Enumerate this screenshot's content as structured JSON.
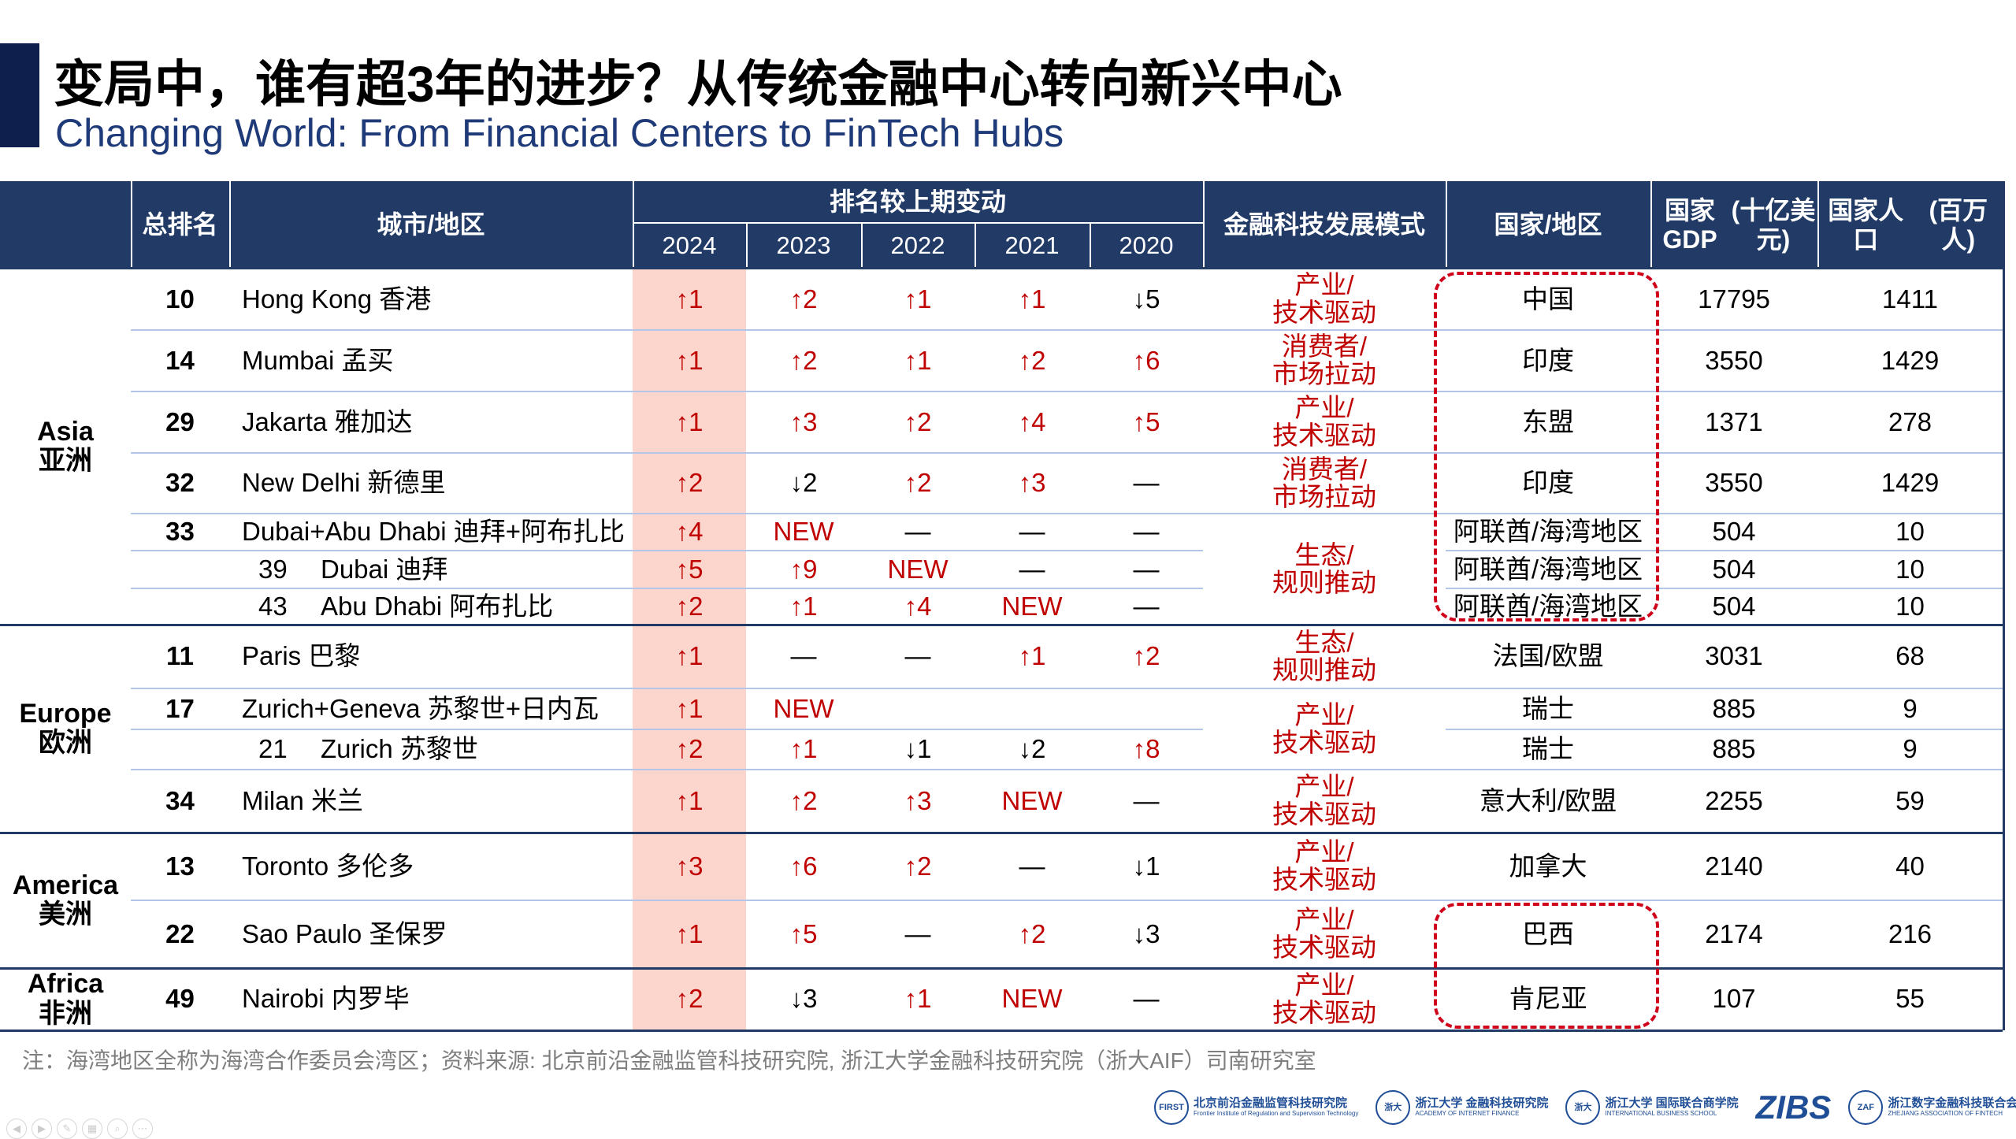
{
  "header": {
    "title": "变局中，谁有超3年的进步？从传统金融中心转向新兴中心",
    "subtitle": "Changing World: From Financial Centers to FinTech Hubs"
  },
  "table": {
    "columns": {
      "rank": "总排名",
      "city": "城市/地区",
      "change_group": "排名较上期变动",
      "years": [
        "2024",
        "2023",
        "2022",
        "2021",
        "2020"
      ],
      "mode": "金融科技发展模式",
      "country": "国家/地区",
      "gdp": [
        "国家GDP",
        "(十亿美元)"
      ],
      "population": [
        "国家人口",
        "(百万人)"
      ]
    },
    "groups": [
      {
        "name": "Asia",
        "name_cn": "亚洲",
        "rows": 7
      },
      {
        "name": "Europe",
        "name_cn": "欧洲",
        "rows": 4
      },
      {
        "name": "America",
        "name_cn": "美洲",
        "rows": 2
      },
      {
        "name": "Africa",
        "name_cn": "非洲",
        "rows": 1
      }
    ],
    "rows": [
      {
        "rank": "10",
        "city": "Hong Kong  香港",
        "sub": false,
        "changes": [
          "↑1",
          "↑2",
          "↑1",
          "↑1",
          "↓5"
        ],
        "mode": [
          "产业/",
          "技术驱动"
        ],
        "mode_span": 1,
        "country": "中国",
        "gdp": "17795",
        "population": "1411"
      },
      {
        "rank": "14",
        "city": "Mumbai  孟买",
        "sub": false,
        "changes": [
          "↑1",
          "↑2",
          "↑1",
          "↑2",
          "↑6"
        ],
        "mode": [
          "消费者/",
          "市场拉动"
        ],
        "mode_span": 1,
        "country": "印度",
        "gdp": "3550",
        "population": "1429"
      },
      {
        "rank": "29",
        "city": "Jakarta  雅加达",
        "sub": false,
        "changes": [
          "↑1",
          "↑3",
          "↑2",
          "↑4",
          "↑5"
        ],
        "mode": [
          "产业/",
          "技术驱动"
        ],
        "mode_span": 1,
        "country": "东盟",
        "gdp": "1371",
        "population": "278"
      },
      {
        "rank": "32",
        "city": "New Delhi 新德里",
        "sub": false,
        "changes": [
          "↑2",
          "↓2",
          "↑2",
          "↑3",
          "—"
        ],
        "mode": [
          "消费者/",
          "市场拉动"
        ],
        "mode_span": 1,
        "country": "印度",
        "gdp": "3550",
        "population": "1429"
      },
      {
        "rank": "33",
        "city": "Dubai+Abu Dhabi  迪拜+阿布扎比",
        "sub": false,
        "changes": [
          "↑4",
          "NEW",
          "—",
          "—",
          "—"
        ],
        "mode": [
          "生态/",
          "规则推动"
        ],
        "mode_span": 3,
        "country": "阿联酋/海湾地区",
        "gdp": "504",
        "population": "10"
      },
      {
        "rank": "39",
        "city": "Dubai  迪拜",
        "sub": true,
        "changes": [
          "↑5",
          "↑9",
          "NEW",
          "—",
          "—"
        ],
        "mode": null,
        "mode_span": 0,
        "country": "阿联酋/海湾地区",
        "gdp": "504",
        "population": "10"
      },
      {
        "rank": "43",
        "city": "Abu Dhabi  阿布扎比",
        "sub": true,
        "changes": [
          "↑2",
          "↑1",
          "↑4",
          "NEW",
          "—"
        ],
        "mode": null,
        "mode_span": 0,
        "country": "阿联酋/海湾地区",
        "gdp": "504",
        "population": "10"
      },
      {
        "rank": "11",
        "city": "Paris  巴黎",
        "sub": false,
        "changes": [
          "↑1",
          "—",
          "—",
          "↑1",
          "↑2"
        ],
        "mode": [
          "生态/",
          "规则推动"
        ],
        "mode_span": 1,
        "country": "法国/欧盟",
        "gdp": "3031",
        "population": "68"
      },
      {
        "rank": "17",
        "city": "Zurich+Geneva  苏黎世+日内瓦",
        "sub": false,
        "changes": [
          "↑1",
          "NEW",
          "",
          "",
          ""
        ],
        "mode": [
          "产业/",
          "技术驱动"
        ],
        "mode_span": 2,
        "country": "瑞士",
        "gdp": "885",
        "population": "9"
      },
      {
        "rank": "21",
        "city": "Zurich  苏黎世",
        "sub": true,
        "changes": [
          "↑2",
          "↑1",
          "↓1",
          "↓2",
          "↑8"
        ],
        "mode": null,
        "mode_span": 0,
        "country": "瑞士",
        "gdp": "885",
        "population": "9"
      },
      {
        "rank": "34",
        "city": "Milan  米兰",
        "sub": false,
        "changes": [
          "↑1",
          "↑2",
          "↑3",
          "NEW",
          "—"
        ],
        "mode": [
          "产业/",
          "技术驱动"
        ],
        "mode_span": 1,
        "country": "意大利/欧盟",
        "gdp": "2255",
        "population": "59"
      },
      {
        "rank": "13",
        "city": "Toronto  多伦多",
        "sub": false,
        "changes": [
          "↑3",
          "↑6",
          "↑2",
          "—",
          "↓1"
        ],
        "mode": [
          "产业/",
          "技术驱动"
        ],
        "mode_span": 1,
        "country": "加拿大",
        "gdp": "2140",
        "population": "40"
      },
      {
        "rank": "22",
        "city": "Sao Paulo  圣保罗",
        "sub": false,
        "changes": [
          "↑1",
          "↑5",
          "—",
          "↑2",
          "↓3"
        ],
        "mode": [
          "产业/",
          "技术驱动"
        ],
        "mode_span": 1,
        "country": "巴西",
        "gdp": "2174",
        "population": "216"
      },
      {
        "rank": "49",
        "city": "Nairobi  内罗毕",
        "sub": false,
        "changes": [
          "↑2",
          "↓3",
          "↑1",
          "NEW",
          "—"
        ],
        "mode": [
          "产业/",
          "技术驱动"
        ],
        "mode_span": 1,
        "country": "肯尼亚",
        "gdp": "107",
        "population": "55"
      }
    ]
  },
  "footer": {
    "note": "注：海湾地区全称为海湾合作委员会湾区；资料来源: 北京前沿金融监管科技研究院, 浙江大学金融科技研究院（浙大AIF）司南研究室",
    "logos": [
      {
        "mark": "FIRST",
        "name": "北京前沿金融监管科技研究院",
        "sub": "Frontier Institute of Regulation and Supervision Technology"
      },
      {
        "mark": "浙大",
        "name": "浙江大学 金融科技研究院",
        "sub": "ACADEMY OF INTERNET FINANCE"
      },
      {
        "mark": "浙大",
        "name": "浙江大学 国际联合商学院",
        "sub": "INTERNATIONAL BUSINESS SCHOOL"
      },
      {
        "mark": "",
        "name": "ZIBS",
        "sub": ""
      },
      {
        "mark": "ZAF",
        "name": "浙江数字金融科技联合会",
        "sub": "ZHEJIANG ASSOCIATION OF FINTECH"
      }
    ]
  },
  "colors": {
    "header_bg": "#213a66",
    "accent_red": "#c00000",
    "highlight_2024": "#fcd5cc",
    "row_line": "#b4c6e7"
  },
  "player_controls": [
    "◀",
    "▶",
    "✎",
    "▦",
    "⌕",
    "⋯"
  ]
}
